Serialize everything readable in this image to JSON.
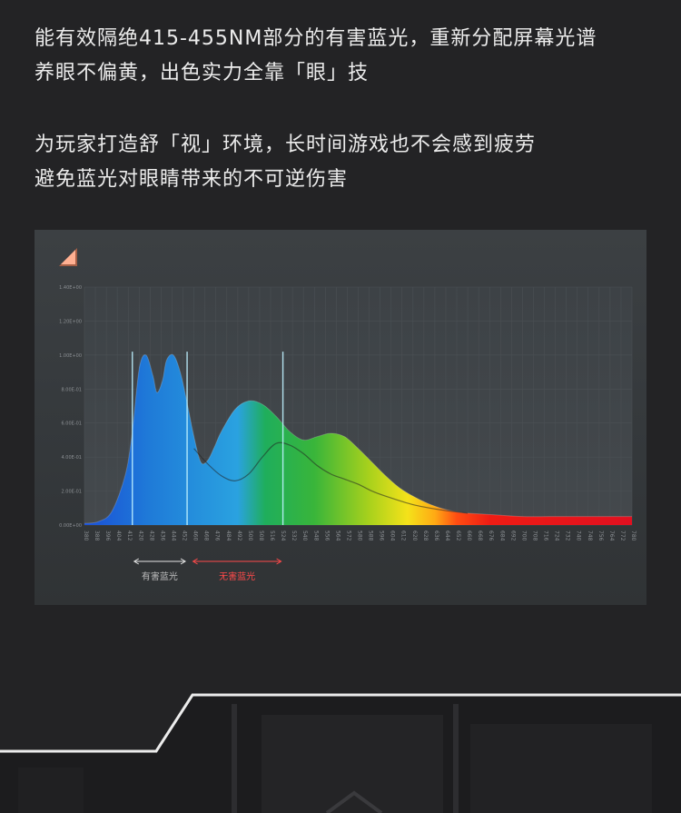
{
  "copy": {
    "line1": "能有效隔绝415-455NM部分的有害蓝光，重新分配屏幕光谱",
    "line2": "养眼不偏黄，出色实力全靠「眼」技",
    "line3": "为玩家打造舒「视」环境，长时间游戏也不会感到疲劳",
    "line4": "避免蓝光对眼睛带来的不可逆伤害"
  },
  "chart_data": {
    "type": "area",
    "title": "",
    "xlabel": "",
    "ylabel": "",
    "x_range": [
      380,
      780
    ],
    "ylim": [
      0,
      1.4
    ],
    "y_ticks": [
      "0.00E+00",
      "2.00E-01",
      "4.00E-01",
      "6.00E-01",
      "8.00E-01",
      "1.00E+00",
      "1.20E+00",
      "1.40E+00"
    ],
    "x_ticks": [
      380,
      388,
      396,
      404,
      412,
      420,
      428,
      436,
      444,
      452,
      460,
      468,
      476,
      484,
      492,
      500,
      508,
      516,
      524,
      532,
      540,
      548,
      556,
      564,
      572,
      580,
      588,
      596,
      604,
      612,
      620,
      628,
      636,
      644,
      652,
      660,
      668,
      676,
      684,
      692,
      700,
      708,
      716,
      724,
      732,
      740,
      748,
      756,
      764,
      772,
      780
    ],
    "series": [
      {
        "name": "",
        "kind": "filled",
        "x": [
          380,
          390,
          400,
          410,
          415,
          420,
          425,
          430,
          433,
          437,
          440,
          445,
          450,
          455,
          460,
          465,
          470,
          475,
          480,
          490,
          500,
          510,
          520,
          530,
          540,
          550,
          560,
          570,
          580,
          590,
          600,
          610,
          620,
          630,
          640,
          650,
          660,
          680,
          700,
          720,
          740,
          760,
          780
        ],
        "y": [
          0.01,
          0.02,
          0.08,
          0.3,
          0.55,
          0.92,
          1.0,
          0.88,
          0.78,
          0.85,
          0.97,
          1.0,
          0.9,
          0.72,
          0.52,
          0.37,
          0.38,
          0.46,
          0.55,
          0.68,
          0.73,
          0.71,
          0.64,
          0.55,
          0.5,
          0.52,
          0.54,
          0.52,
          0.45,
          0.37,
          0.29,
          0.22,
          0.17,
          0.13,
          0.1,
          0.08,
          0.07,
          0.06,
          0.05,
          0.05,
          0.05,
          0.05,
          0.05
        ]
      },
      {
        "name": "",
        "kind": "line",
        "x": [
          460,
          470,
          480,
          490,
          500,
          510,
          520,
          530,
          540,
          550,
          560,
          570,
          580,
          590,
          600,
          620,
          640,
          660
        ],
        "y": [
          0.45,
          0.36,
          0.29,
          0.26,
          0.3,
          0.4,
          0.48,
          0.47,
          0.42,
          0.35,
          0.3,
          0.27,
          0.24,
          0.2,
          0.17,
          0.12,
          0.09,
          0.07
        ]
      }
    ],
    "markers_x": [
      415,
      455,
      525
    ],
    "bands": [
      {
        "label": "有害蓝光",
        "from": 415,
        "to": 455,
        "color": "#e6e6e6"
      },
      {
        "label": "无害蓝光",
        "from": 458,
        "to": 525,
        "color": "#ff4a4a"
      }
    ],
    "grid": true,
    "legend": "none"
  },
  "colors": {
    "page_bg": "#232325",
    "panel_bg": "#373b3e",
    "plot_bg": "#3f4448",
    "accent_orange": "#ff7a4a",
    "harmful_band": "#e6e6e6",
    "safe_band": "#ff4a4a"
  },
  "icons": {
    "panel_corner": "triangle-corner-icon"
  }
}
